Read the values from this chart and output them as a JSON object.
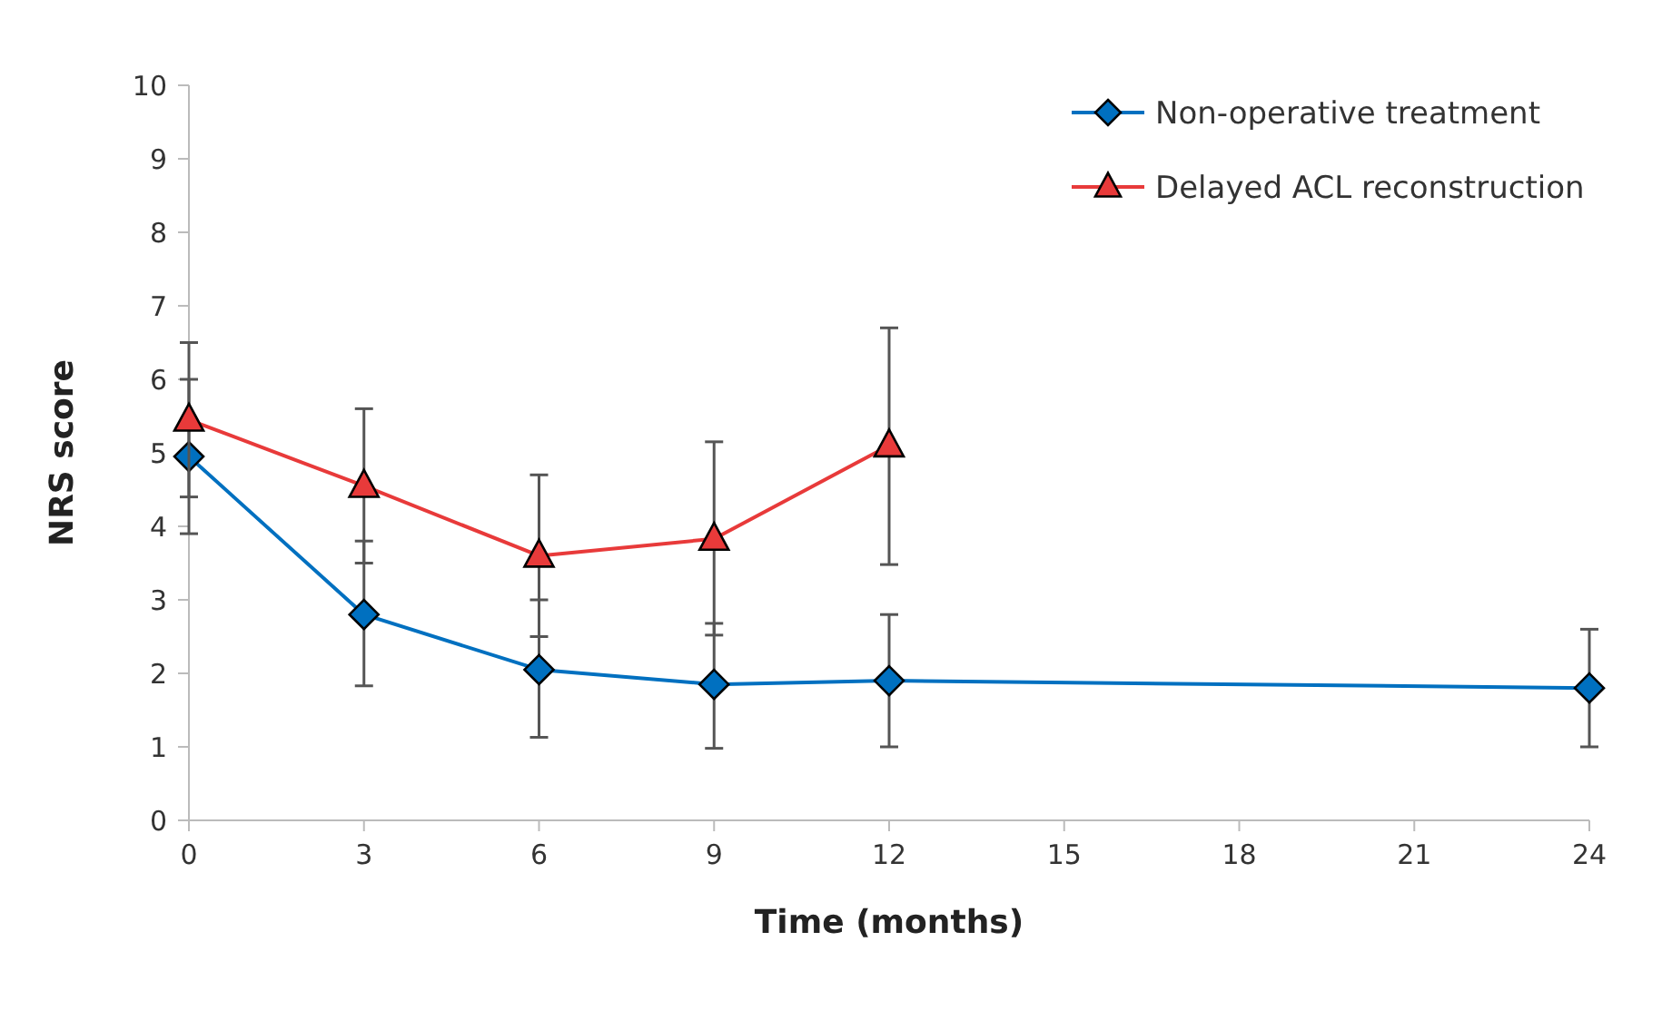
{
  "chart_data": {
    "type": "line",
    "xlabel": "Time (months)",
    "ylabel": "NRS score",
    "xlim": [
      0,
      24
    ],
    "xticks": [
      0,
      3,
      6,
      9,
      12,
      15,
      18,
      21,
      24
    ],
    "ylim": [
      0,
      10
    ],
    "yticks": [
      0,
      1,
      2,
      3,
      4,
      5,
      6,
      7,
      8,
      9,
      10
    ],
    "legend": "top right",
    "grid": false,
    "series": [
      {
        "name": "Non-operative treatment",
        "color": "#0070c0",
        "marker": "diamond",
        "x": [
          0,
          3,
          6,
          9,
          12,
          24
        ],
        "values": [
          4.95,
          2.8,
          2.05,
          1.85,
          1.9,
          1.8
        ],
        "errors": [
          [
            3.9,
            6.0
          ],
          [
            1.83,
            3.8
          ],
          [
            1.13,
            3.0
          ],
          [
            0.98,
            2.68
          ],
          [
            1.0,
            2.8
          ],
          [
            1.0,
            2.6
          ]
        ]
      },
      {
        "name": "Delayed ACL reconstruction",
        "color": "#e83a3a",
        "marker": "triangle",
        "x": [
          0,
          3,
          6,
          9,
          12
        ],
        "values": [
          5.45,
          4.55,
          3.6,
          3.83,
          5.1
        ],
        "errors": [
          [
            4.4,
            6.5
          ],
          [
            3.5,
            5.6
          ],
          [
            2.5,
            4.7
          ],
          [
            2.52,
            5.15
          ],
          [
            3.48,
            6.7
          ]
        ]
      }
    ]
  }
}
